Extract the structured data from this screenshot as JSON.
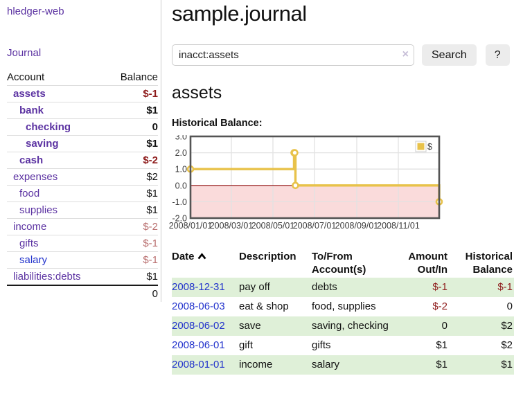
{
  "app": {
    "brand": "hledger-web",
    "nav_journal": "Journal"
  },
  "header": {
    "title": "sample.journal"
  },
  "search": {
    "value": "inacct:assets",
    "clear_label": "×",
    "button": "Search",
    "help_button": "?"
  },
  "account_page": {
    "heading": "assets",
    "chart_label": "Historical Balance:"
  },
  "sidebar": {
    "columns": [
      "Account",
      "Balance"
    ],
    "accounts": [
      {
        "name": "assets",
        "level": 1,
        "bold": true,
        "balance": "$-1",
        "bal_style": "neg",
        "link": "purple"
      },
      {
        "name": "bank",
        "level": 2,
        "bold": true,
        "balance": "$1",
        "bal_style": "pos",
        "link": "purple"
      },
      {
        "name": "checking",
        "level": 3,
        "bold": true,
        "balance": "0",
        "bal_style": "pos",
        "link": "purple"
      },
      {
        "name": "saving",
        "level": 3,
        "bold": true,
        "balance": "$1",
        "bal_style": "pos",
        "link": "purple"
      },
      {
        "name": "cash",
        "level": 2,
        "bold": true,
        "balance": "$-2",
        "bal_style": "neg",
        "link": "purple"
      },
      {
        "name": "expenses",
        "level": 1,
        "bold": false,
        "balance": "$2",
        "bal_style": "pos",
        "link": "purple"
      },
      {
        "name": "food",
        "level": 2,
        "bold": false,
        "balance": "$1",
        "bal_style": "pos",
        "link": "purple"
      },
      {
        "name": "supplies",
        "level": 2,
        "bold": false,
        "balance": "$1",
        "bal_style": "pos",
        "link": "purple"
      },
      {
        "name": "income",
        "level": 1,
        "bold": false,
        "balance": "$-2",
        "bal_style": "negsoft",
        "link": "purple"
      },
      {
        "name": "gifts",
        "level": 2,
        "bold": false,
        "balance": "$-1",
        "bal_style": "negsoft",
        "link": "purple"
      },
      {
        "name": "salary",
        "level": 2,
        "bold": false,
        "balance": "$-1",
        "bal_style": "negsoft",
        "link": "blue"
      },
      {
        "name": "liabilities:debts",
        "level": 1,
        "bold": false,
        "balance": "$1",
        "bal_style": "pos",
        "link": "purple"
      }
    ],
    "total": "0"
  },
  "register": {
    "columns": [
      "Date",
      "Description",
      "To/From Account(s)",
      "Amount Out/In",
      "Historical Balance"
    ],
    "rows": [
      {
        "date": "2008-12-31",
        "description": "pay off",
        "accounts": "debts",
        "amount": "$-1",
        "amount_negative": true,
        "balance": "$-1",
        "balance_negative": true,
        "green": true
      },
      {
        "date": "2008-06-03",
        "description": "eat & shop",
        "accounts": "food, supplies",
        "amount": "$-2",
        "amount_negative": true,
        "balance": "0",
        "balance_negative": false,
        "green": false
      },
      {
        "date": "2008-06-02",
        "description": "save",
        "accounts": "saving, checking",
        "amount": "0",
        "amount_negative": false,
        "balance": "$2",
        "balance_negative": false,
        "green": true
      },
      {
        "date": "2008-06-01",
        "description": "gift",
        "accounts": "gifts",
        "amount": "$1",
        "amount_negative": false,
        "balance": "$2",
        "balance_negative": false,
        "green": false
      },
      {
        "date": "2008-01-01",
        "description": "income",
        "accounts": "salary",
        "amount": "$1",
        "amount_negative": false,
        "balance": "$1",
        "balance_negative": false,
        "green": true
      }
    ]
  },
  "chart_data": {
    "type": "line",
    "title": "Historical Balance:",
    "step": true,
    "x_range": [
      "2008-01-01",
      "2008-12-31"
    ],
    "ylim": [
      -2.0,
      3.0
    ],
    "yticks": [
      3.0,
      2.0,
      1.0,
      0.0,
      -1.0,
      -2.0
    ],
    "xticks": [
      {
        "date": "2008-01-01",
        "label": "2008/01/01"
      },
      {
        "date": "2008-03-01",
        "label": "2008/03/01"
      },
      {
        "date": "2008-05-01",
        "label": "2008/05/01"
      },
      {
        "date": "2008-07-01",
        "label": "2008/07/01"
      },
      {
        "date": "2008-09-01",
        "label": "2008/09/01"
      },
      {
        "date": "2008-11-01",
        "label": "2008/11/01"
      }
    ],
    "series": [
      {
        "name": "$",
        "color": "#e8c24a",
        "points": [
          [
            "2008-01-01",
            1
          ],
          [
            "2008-06-01",
            2
          ],
          [
            "2008-06-02",
            2
          ],
          [
            "2008-06-03",
            0
          ],
          [
            "2008-12-31",
            -1
          ]
        ]
      }
    ],
    "legend_position": "top-right",
    "grid": true,
    "negative_fill": "#fadbdb",
    "zero_line_color": "#8f0e0e",
    "grid_color": "#e2e2e2",
    "border_color": "#545454"
  },
  "colors": {
    "link_purple": "#5c33a2",
    "link_blue": "#2233cc",
    "negative_strong": "#8e1b1b",
    "negative_soft": "#b96f6f",
    "row_green": "#dff0d8",
    "chart_yellow": "#e8c24a"
  }
}
